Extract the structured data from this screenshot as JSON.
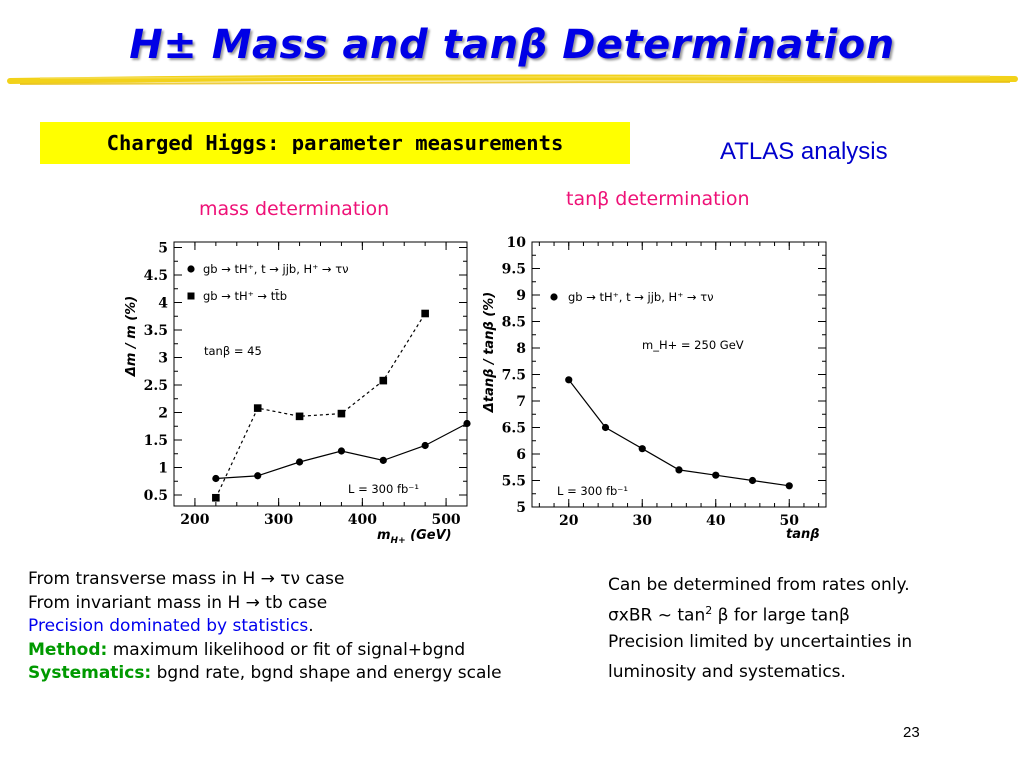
{
  "slide": {
    "title": "H± Mass and tanβ Determination",
    "box_label": "Charged Higgs: parameter measurements",
    "atlas_label": "ATLAS analysis",
    "mass_heading": "mass determination",
    "tanb_heading": "tanβ determination",
    "page_number": "23"
  },
  "left_notes": {
    "line1": "From transverse mass in H → τν case",
    "line2": "From invariant mass  in H → tb case",
    "line3": "Precision dominated by statistics",
    "line3_end": ".",
    "line4_label": "Method:",
    "line4_text": " maximum likelihood or fit of signal+bgnd",
    "line5_label": "Systematics:",
    "line5_text": " bgnd rate, bgnd shape and energy scale"
  },
  "right_notes": {
    "line1": "Can be determined from rates only.",
    "line2_a": "σxBR ~  tan",
    "line2_sup": "2",
    "line2_b": " β  for large tanβ",
    "line3": "Precision limited by uncertainties in",
    "line4": "luminosity and systematics",
    "line4_end": "."
  },
  "colors": {
    "title": "#0000e6",
    "box": "#ffff00",
    "heading": "#ee1177",
    "blue_text": "#0000ee",
    "green_text": "#009900"
  },
  "chart_data": [
    {
      "type": "line",
      "title": "mass determination",
      "xlabel": "m_H+ (GeV)",
      "ylabel": "Δm / m (%)",
      "xlim": [
        175,
        525
      ],
      "ylim": [
        0.3,
        5.1
      ],
      "x_ticks": [
        200,
        300,
        400,
        500
      ],
      "y_ticks": [
        0.5,
        1,
        1.5,
        2,
        2.5,
        3,
        3.5,
        4,
        4.5,
        5
      ],
      "legend_position": "top-left",
      "annotations": [
        "tanβ = 45",
        "L = 300 fb⁻¹"
      ],
      "series": [
        {
          "name": "gb → tH⁺, t → jjb, H⁺ → τν",
          "marker": "circle",
          "line": "solid",
          "x": [
            225,
            275,
            325,
            375,
            425,
            475,
            525
          ],
          "values": [
            0.8,
            0.85,
            1.1,
            1.3,
            1.13,
            1.4,
            1.8
          ]
        },
        {
          "name": "gb → tH⁺ → tt̄b",
          "marker": "square",
          "line": "dashed",
          "x": [
            225,
            275,
            325,
            375,
            425,
            475
          ],
          "values": [
            0.45,
            2.08,
            1.93,
            1.98,
            2.58,
            3.8
          ]
        }
      ]
    },
    {
      "type": "line",
      "title": "tanβ determination",
      "xlabel": "tanβ",
      "ylabel": "Δtanβ / tanβ (%)",
      "xlim": [
        15,
        55
      ],
      "ylim": [
        5,
        10
      ],
      "x_ticks": [
        20,
        30,
        40,
        50
      ],
      "y_ticks": [
        5,
        5.5,
        6,
        6.5,
        7,
        7.5,
        8,
        8.5,
        9,
        9.5,
        10
      ],
      "legend_position": "top-left",
      "annotations": [
        "m_H+ = 250 GeV",
        "L = 300 fb⁻¹"
      ],
      "series": [
        {
          "name": "gb → tH⁺, t → jjb, H⁺ → τν",
          "marker": "circle",
          "line": "solid",
          "x": [
            20,
            25,
            30,
            35,
            40,
            45,
            50
          ],
          "values": [
            7.4,
            6.5,
            6.1,
            5.7,
            5.6,
            5.5,
            5.4
          ]
        }
      ]
    }
  ]
}
